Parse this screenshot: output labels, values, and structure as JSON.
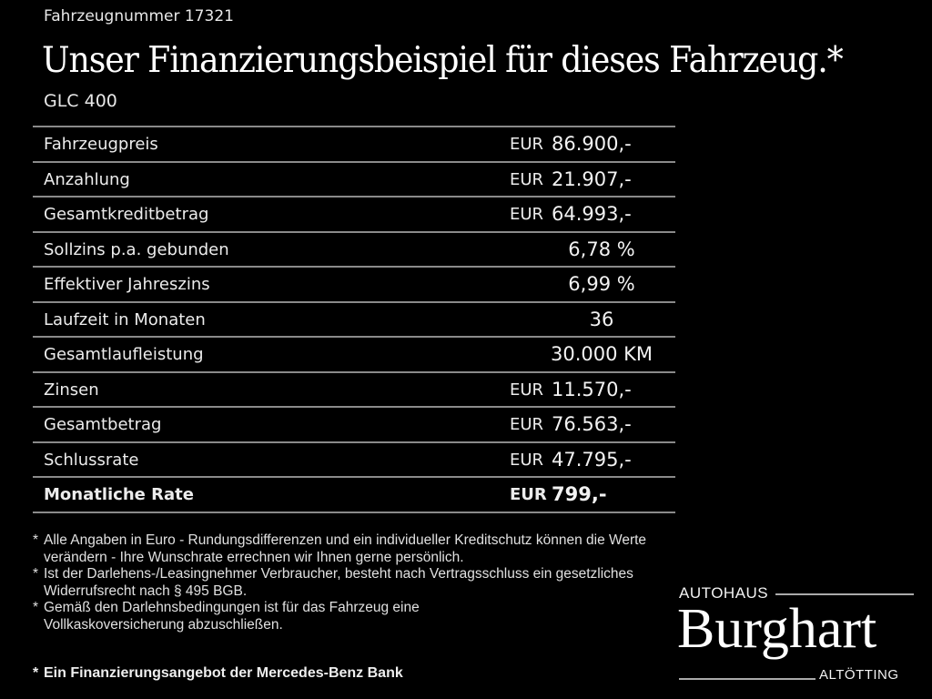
{
  "header": {
    "vehicle_number": "Fahrzeugnummer 17321",
    "title": "Unser Finanzierungsbeispiel für dieses Fahrzeug.*",
    "model": "GLC 400"
  },
  "rows": [
    {
      "label": "Fahrzeugpreis",
      "currency": "EUR",
      "value": "86.900,-"
    },
    {
      "label": "Anzahlung",
      "currency": "EUR",
      "value": "21.907,-"
    },
    {
      "label": "Gesamtkreditbetrag",
      "currency": "EUR",
      "value": "64.993,-"
    },
    {
      "label": "Sollzins p.a. gebunden",
      "currency": "",
      "value": "6,78 %"
    },
    {
      "label": "Effektiver Jahreszins",
      "currency": "",
      "value": "6,99 %"
    },
    {
      "label": "Laufzeit in Monaten",
      "currency": "",
      "value": "36"
    },
    {
      "label": "Gesamtlaufleistung",
      "currency": "",
      "value": "30.000 KM"
    },
    {
      "label": "Zinsen",
      "currency": "EUR",
      "value": "11.570,-"
    },
    {
      "label": "Gesamtbetrag",
      "currency": "EUR",
      "value": "76.563,-"
    },
    {
      "label": "Schlussrate",
      "currency": "EUR",
      "value": "47.795,-"
    },
    {
      "label": "Monatliche Rate",
      "currency": "EUR",
      "value": "799,-"
    }
  ],
  "notes": {
    "star": "*",
    "items": [
      "Alle Angaben in Euro - Rundungsdifferenzen und ein individueller Kreditschutz können die Werte verändern - Ihre Wunschrate errechnen wir Ihnen gerne persönlich.",
      "Ist der Darlehens-/Leasingnehmer Verbraucher, besteht nach Vertragsschluss ein gesetzliches Widerrufsrecht nach § 495 BGB.",
      "Gemäß den Darlehnsbedingungen ist für das Fahrzeug eine Vollkaskoversicherung abzuschließen."
    ],
    "bank": "Ein Finanzierungsangebot der Mercedes-Benz Bank"
  },
  "logo": {
    "top": "AUTOHAUS",
    "name": "Burghart",
    "bottom": "ALTÖTTING"
  },
  "colors": {
    "background": "#000000",
    "text": "#f2f2f2",
    "rule": "#8a8a8a"
  }
}
